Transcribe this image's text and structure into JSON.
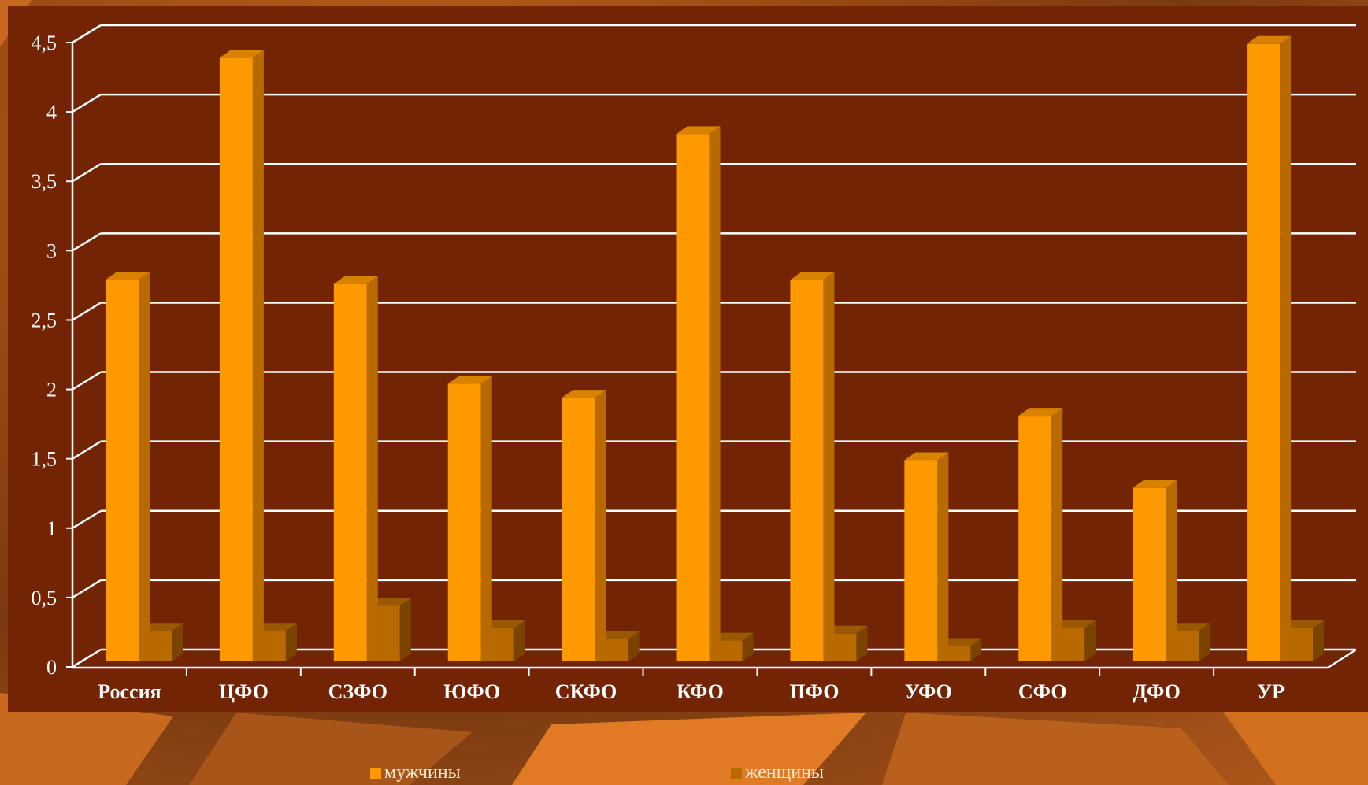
{
  "colors": {
    "panel": "#722405",
    "men_front": "#ff9900",
    "men_side": "#b86a00",
    "men_top": "#d98200",
    "women_front": "#b86a00",
    "women_side": "#7a4300",
    "women_top": "#9a5800",
    "grid": "#ffffff",
    "text": "#ffffff",
    "legend_text": "#ffe9c8"
  },
  "chart_data": {
    "type": "bar",
    "title": "",
    "xlabel": "",
    "ylabel": "",
    "ylim": [
      0,
      4.5
    ],
    "yticks": [
      0,
      0.5,
      1,
      1.5,
      2,
      2.5,
      3,
      3.5,
      4,
      4.5
    ],
    "ytick_labels": [
      "0",
      "0,5",
      "1",
      "1,5",
      "2",
      "2,5",
      "3",
      "3,5",
      "4",
      "4,5"
    ],
    "grid": true,
    "legend_position": "bottom",
    "categories": [
      "Россия",
      "ЦФО",
      "СЗФО",
      "ЮФО",
      "СКФО",
      "КФО",
      "ПФО",
      "УФО",
      "СФО",
      "ДФО",
      "УР"
    ],
    "series": [
      {
        "name": "мужчины",
        "values": [
          2.75,
          4.35,
          2.72,
          2.0,
          1.9,
          3.8,
          2.75,
          1.45,
          1.77,
          1.25,
          4.45
        ]
      },
      {
        "name": "женщины",
        "values": [
          0.22,
          0.22,
          0.4,
          0.24,
          0.16,
          0.15,
          0.2,
          0.11,
          0.24,
          0.22,
          0.24
        ]
      }
    ]
  }
}
